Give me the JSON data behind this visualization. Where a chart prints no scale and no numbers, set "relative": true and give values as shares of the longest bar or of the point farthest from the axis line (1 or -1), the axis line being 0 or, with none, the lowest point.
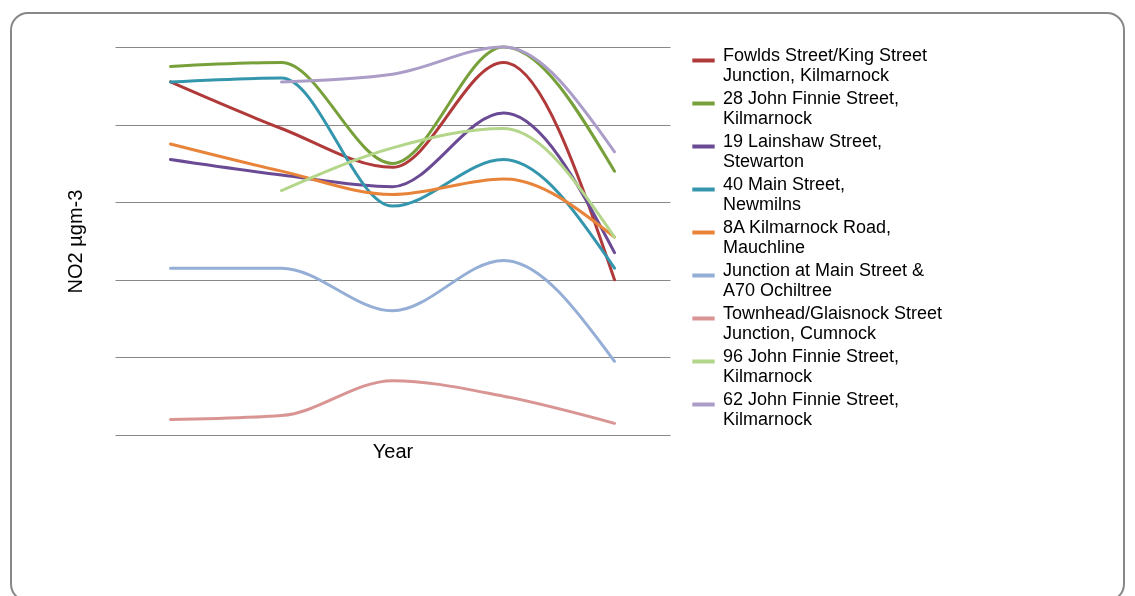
{
  "chart_data": {
    "type": "line",
    "xlabel": "Year",
    "ylabel": "NO2 µgm-3",
    "relative": true,
    "categories": [
      null,
      null,
      null,
      null,
      null
    ],
    "grid": "y",
    "legend": "right",
    "marker": "none",
    "line_style": "solid",
    "series": [
      {
        "name": "Fowlds Street/King Street Junction, Kilmarnock",
        "color": "#b03a3a",
        "values": [
          0.91,
          0.79,
          0.69,
          0.96,
          0.4
        ]
      },
      {
        "name": "28 John Finnie Street, Kilmarnock",
        "color": "#77a03a",
        "values": [
          0.95,
          0.96,
          0.7,
          1.0,
          0.68
        ]
      },
      {
        "name": "19 Lainshaw Street, Stewarton",
        "color": "#6a4a94",
        "values": [
          0.71,
          0.67,
          0.64,
          0.83,
          0.47
        ]
      },
      {
        "name": "40 Main Street, Newmilns",
        "color": "#3496ad",
        "values": [
          0.91,
          0.92,
          0.59,
          0.71,
          0.43
        ]
      },
      {
        "name": "8A Kilmarnock Road, Mauchline",
        "color": "#e8843a",
        "values": [
          0.75,
          0.68,
          0.62,
          0.66,
          0.51
        ]
      },
      {
        "name": "Junction at Main Street & A70 Ochiltree",
        "color": "#94aed6",
        "values": [
          0.43,
          0.43,
          0.32,
          0.45,
          0.19
        ]
      },
      {
        "name": "Townhead/Glaisnock Street Junction, Cumnock",
        "color": "#d99594",
        "values": [
          0.04,
          0.05,
          0.14,
          0.1,
          0.03
        ]
      },
      {
        "name": "96 John Finnie Street, Kilmarnock",
        "color": "#b3d68a",
        "values": [
          null,
          0.63,
          0.74,
          0.79,
          0.51
        ]
      },
      {
        "name": "62 John Finnie Street, Kilmarnock",
        "color": "#ab9cc8",
        "values": [
          null,
          0.91,
          0.93,
          1.0,
          0.73
        ]
      }
    ]
  }
}
